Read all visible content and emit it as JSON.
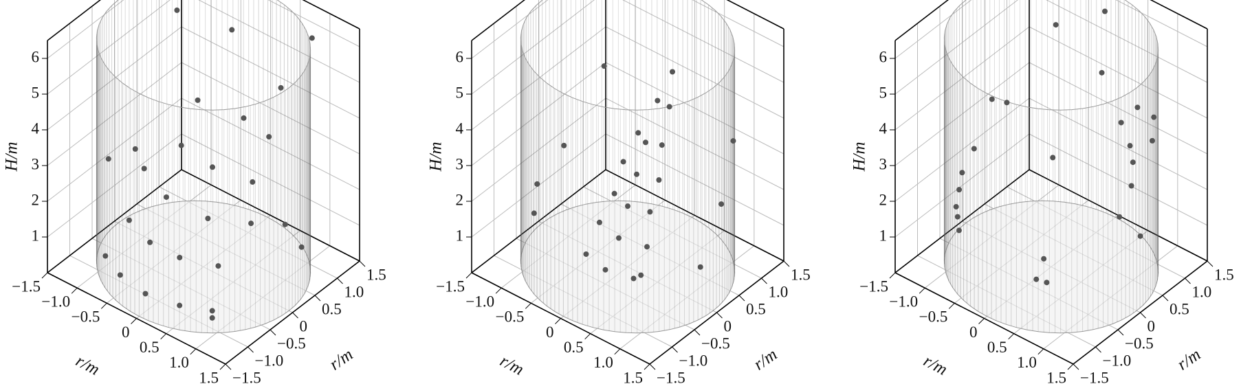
{
  "chart_data": [
    {
      "type": "scatter",
      "x_label": "r/m",
      "y_label": "r/m",
      "z_label": "H/m",
      "xlim": [
        -1.5,
        1.5
      ],
      "ylim": [
        -1.5,
        1.5
      ],
      "zlim": [
        0,
        6.5
      ],
      "xticks": [
        {
          "value": -1.5,
          "label": "−1.5"
        },
        {
          "value": -1,
          "label": "−1.0"
        },
        {
          "value": -0.5,
          "label": "−0.5"
        },
        0,
        0.5,
        {
          "value": 1,
          "label": "1.0"
        },
        1.5
      ],
      "yticks": [
        {
          "value": -1.5,
          "label": "−1.5"
        },
        {
          "value": -1,
          "label": "−1.0"
        },
        {
          "value": -0.5,
          "label": "−0.5"
        },
        0,
        0.5,
        {
          "value": 1,
          "label": "1.0"
        },
        1.5
      ],
      "zticks": [
        1,
        2,
        3,
        4,
        5,
        6
      ],
      "grid": true,
      "series": [
        {
          "color": "#555555",
          "x": [
            -0.9,
            -0.5,
            0,
            0.5,
            0.9,
            -0.8,
            -0.3,
            0.2,
            0.7,
            -1.0,
            -0.4,
            0.3,
            0.8,
            -0.6,
            0,
            0.6,
            -0.7,
            0,
            0.5,
            -1.3,
            -1.3,
            1.2,
            1.3,
            0.4,
            -0.2,
            0.9,
            -1.2,
            1.0
          ],
          "y": [
            -1.0,
            -1.2,
            -1.3,
            -1.2,
            -1.0,
            -0.6,
            -0.8,
            -0.8,
            -0.6,
            0.0,
            -0.3,
            -0.3,
            0.0,
            0.3,
            0.2,
            0.3,
            0.8,
            0.9,
            0.8,
            0.2,
            -0.4,
            0.6,
            0.1,
            1.2,
            0.9,
            -1.0,
            1.0,
            1.1
          ],
          "z": [
            0.5,
            0.5,
            0.5,
            0.5,
            0.5,
            1.2,
            1.2,
            1.2,
            1.2,
            1.9,
            1.9,
            1.9,
            1.9,
            2.6,
            2.6,
            2.6,
            3.3,
            3.3,
            3.3,
            2.0,
            2.3,
            1.0,
            2.2,
            4.2,
            5.6,
            0.3,
            5.2,
            6.2
          ]
        }
      ]
    },
    {
      "type": "scatter",
      "x_label": "r/m",
      "y_label": "r/m",
      "z_label": "H/m",
      "xlim": [
        -1.5,
        1.5
      ],
      "ylim": [
        -1.5,
        1.5
      ],
      "zlim": [
        0,
        6.5
      ],
      "xticks": [
        {
          "value": -1.5,
          "label": "−1.5"
        },
        {
          "value": -1,
          "label": "−1.0"
        },
        {
          "value": -0.5,
          "label": "−0.5"
        },
        0,
        0.5,
        {
          "value": 1,
          "label": "1.0"
        },
        1.5
      ],
      "yticks": [
        {
          "value": -1.5,
          "label": "−1.5"
        },
        {
          "value": -1,
          "label": "−1.0"
        },
        {
          "value": -0.5,
          "label": "−0.5"
        },
        0,
        0.5,
        {
          "value": 1,
          "label": "1.0"
        },
        1.5
      ],
      "zticks": [
        1,
        2,
        3,
        4,
        5,
        6
      ],
      "grid": true,
      "series": [
        {
          "color": "#555555",
          "x": [
            -0.4,
            0,
            0.4,
            -0.4,
            0,
            0.4,
            -0.3,
            0,
            0.3,
            -0.3,
            0,
            0.3,
            -0.2,
            0,
            0.2,
            -0.1,
            0.1,
            0,
            -1.3,
            -1.3,
            1.2,
            1.3,
            -0.9,
            0.9,
            -1.0,
            1.1
          ],
          "y": [
            -0.4,
            -0.5,
            -0.4,
            -0.1,
            -0.2,
            -0.1,
            0.1,
            0.0,
            0.1,
            0.3,
            0.2,
            0.3,
            0.5,
            0.4,
            0.5,
            0.8,
            0.8,
            1.0,
            0.3,
            -0.3,
            0.5,
            -0.1,
            -0.9,
            -0.9,
            0.8,
            0.9
          ],
          "z": [
            0.4,
            0.4,
            0.4,
            1.0,
            1.0,
            1.0,
            1.7,
            1.7,
            1.7,
            2.4,
            2.4,
            2.4,
            3.1,
            3.1,
            3.1,
            3.8,
            3.8,
            4.5,
            2.0,
            1.5,
            2.3,
            1.2,
            1.6,
            1.4,
            4.0,
            3.6
          ]
        }
      ]
    },
    {
      "type": "scatter",
      "x_label": "r/m",
      "y_label": "r/m",
      "z_label": "H/m",
      "xlim": [
        -1.5,
        1.5
      ],
      "ylim": [
        -1.5,
        1.5
      ],
      "zlim": [
        0,
        6.5
      ],
      "xticks": [
        {
          "value": -1.5,
          "label": "−1.5"
        },
        {
          "value": -1,
          "label": "−1.0"
        },
        {
          "value": -0.5,
          "label": "−0.5"
        },
        0,
        0.5,
        {
          "value": 1,
          "label": "1.0"
        },
        1.5
      ],
      "yticks": [
        {
          "value": -1.5,
          "label": "−1.5"
        },
        {
          "value": -1,
          "label": "−1.0"
        },
        {
          "value": -0.5,
          "label": "−0.5"
        },
        0,
        0.5,
        {
          "value": 1,
          "label": "1.0"
        },
        1.5
      ],
      "zticks": [
        1,
        2,
        3,
        4,
        5,
        6
      ],
      "grid": true,
      "series": [
        {
          "color": "#555555",
          "x": [
            -1.3,
            -1.2,
            -1.1,
            -1.0,
            -0.9,
            -0.8,
            -1.3,
            -1.2,
            0.2,
            0.3,
            0.1,
            0.5,
            0.8,
            1.0,
            1.2,
            0.7,
            0.9,
            1.1,
            -0.2,
            0.4,
            1.3,
            1.2,
            0.0,
            -0.6
          ],
          "y": [
            0.0,
            -0.4,
            -0.6,
            -0.8,
            -0.9,
            -1.0,
            0.4,
            0.6,
            -0.6,
            -0.5,
            -0.3,
            0.9,
            0.7,
            0.5,
            0.2,
            1.0,
            1.1,
            0.8,
            0.3,
            0.6,
            -0.2,
            0.4,
            1.2,
            0.9
          ],
          "z": [
            2.2,
            2.0,
            1.8,
            1.6,
            1.5,
            1.3,
            3.2,
            3.0,
            0.4,
            0.3,
            0.6,
            3.6,
            3.4,
            3.3,
            3.1,
            4.1,
            3.9,
            3.7,
            2.6,
            5.2,
            2.7,
            1.5,
            6.0,
            5.4
          ]
        }
      ]
    }
  ]
}
